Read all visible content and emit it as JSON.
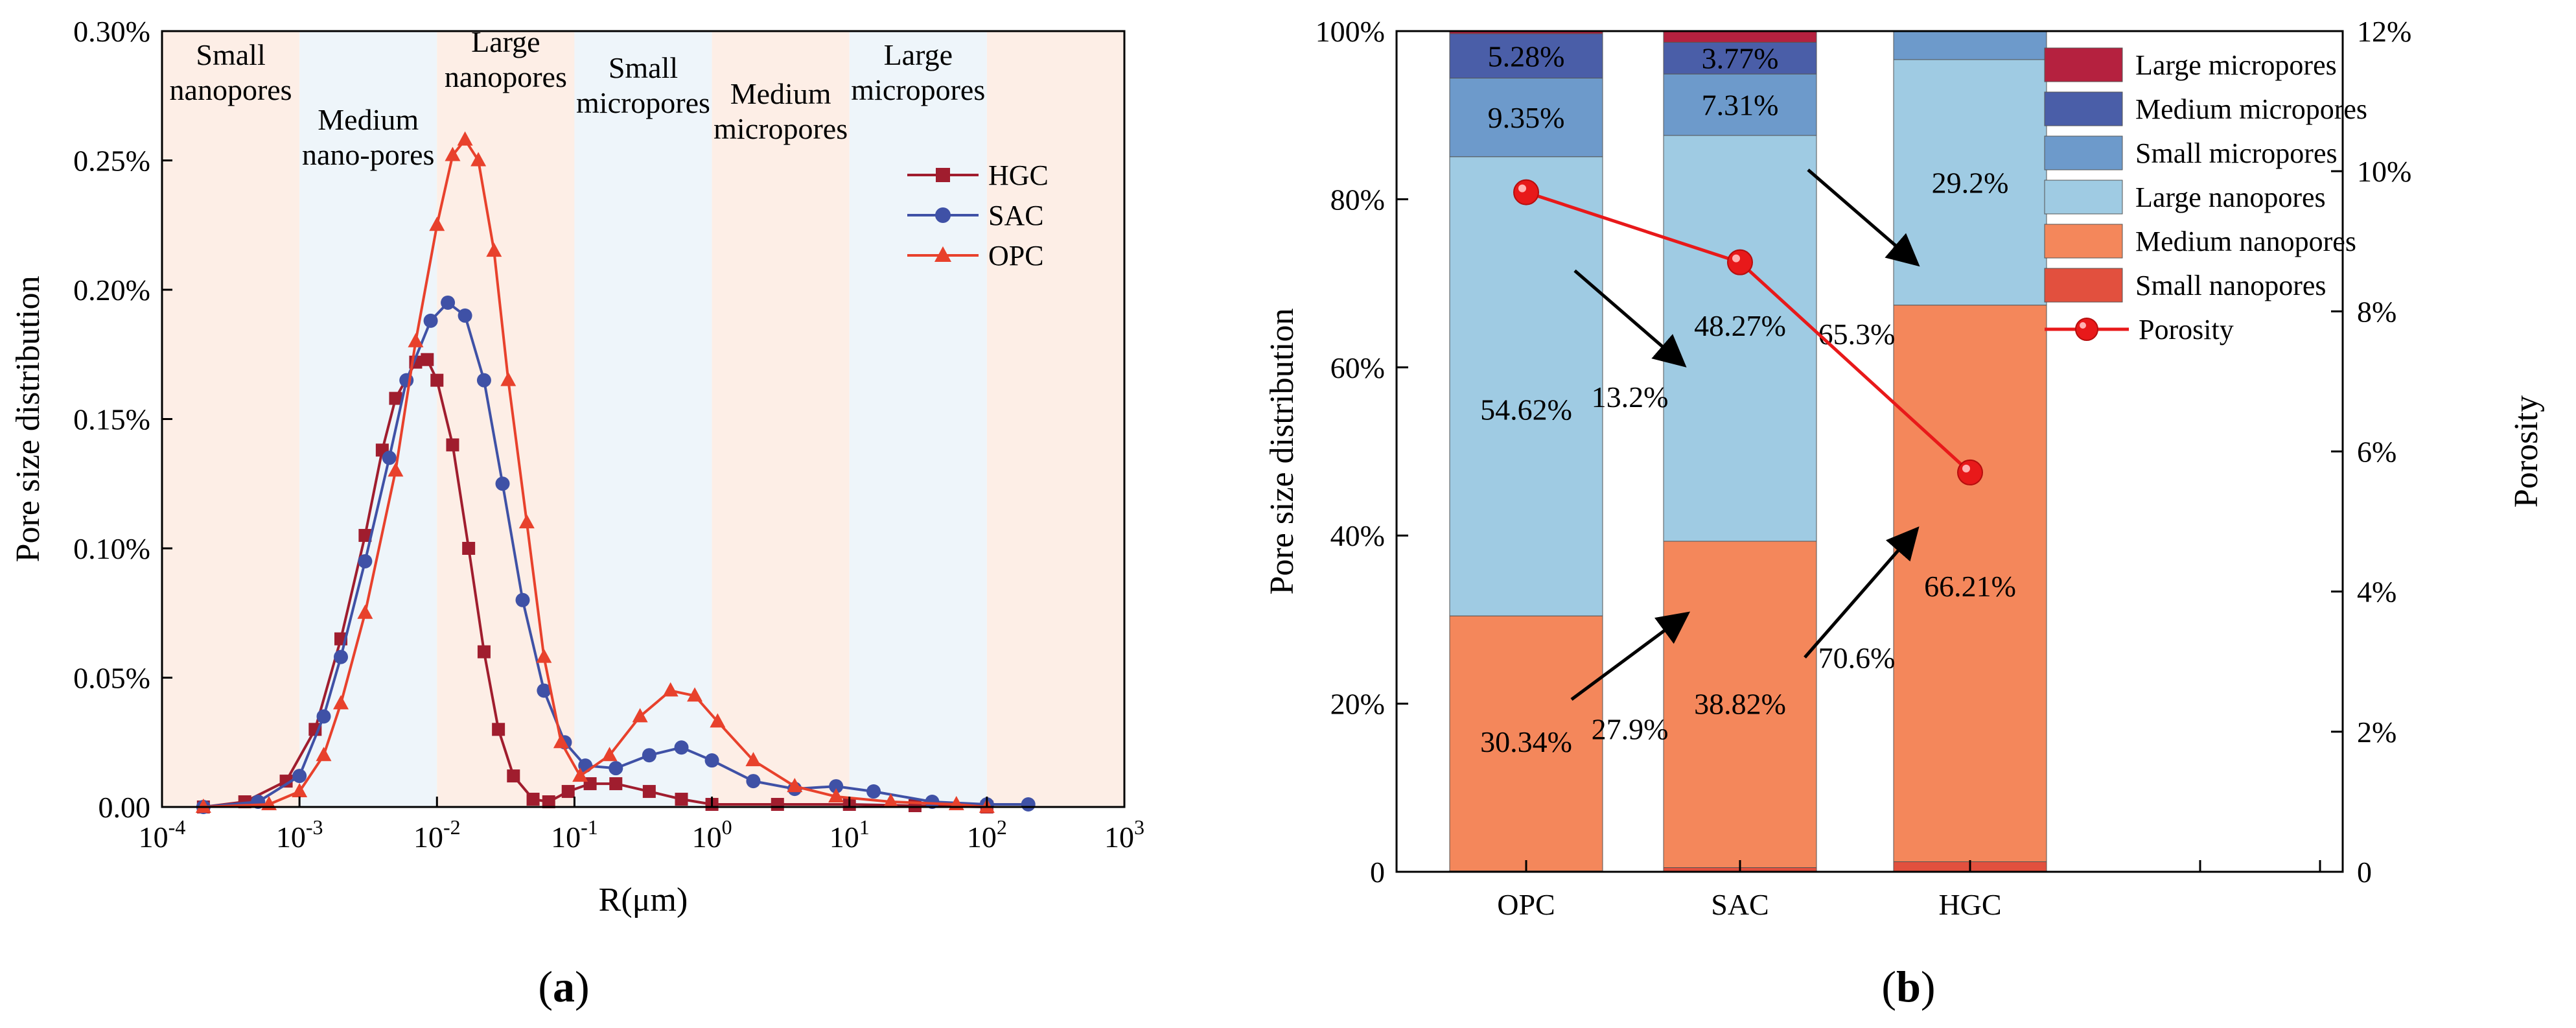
{
  "panel_a": {
    "caption_letter": "a",
    "ylabel": "Pore size distribution",
    "xlabel": "R(μm)",
    "x_tick_exponents": [
      "-4",
      "-3",
      "-2",
      "-1",
      "0",
      "1",
      "2",
      "3"
    ],
    "y_tick_labels": [
      "0.00",
      "0.05%",
      "0.10%",
      "0.15%",
      "0.20%",
      "0.25%",
      "0.30%"
    ],
    "bands": [
      {
        "lines": [
          "Small",
          "nanopores"
        ],
        "color": "#fdeee6"
      },
      {
        "lines": [
          "Medium",
          "nano-pores"
        ],
        "color": "#eef5fa"
      },
      {
        "lines": [
          "Large",
          "nanopores"
        ],
        "color": "#fdeee6"
      },
      {
        "lines": [
          "Small",
          "micropores"
        ],
        "color": "#eef5fa"
      },
      {
        "lines": [
          "Medium",
          "micropores"
        ],
        "color": "#fdeee6"
      },
      {
        "lines": [
          "Large",
          "micropores"
        ],
        "color": "#eef5fa"
      },
      {
        "lines": [],
        "color": "#fdeee6"
      }
    ],
    "legend": [
      "HGC",
      "SAC",
      "OPC"
    ]
  },
  "panel_b": {
    "caption_letter": "b",
    "ylabel": "Pore size distribution",
    "y2label": "Porosity",
    "y_tick_labels": [
      "0",
      "20%",
      "40%",
      "60%",
      "80%",
      "100%"
    ],
    "y2_tick_labels": [
      "0",
      "2%",
      "4%",
      "6%",
      "8%",
      "10%",
      "12%"
    ],
    "categories": [
      "OPC",
      "SAC",
      "HGC"
    ],
    "bar_labels": {
      "OPC": {
        "medium_nano": "30.34%",
        "large_nano": "54.62%",
        "small_micro": "9.35%",
        "medium_micro": "5.28%"
      },
      "SAC": {
        "medium_nano": "38.82%",
        "large_nano": "48.27%",
        "small_micro": "7.31%",
        "medium_micro": "3.77%"
      },
      "HGC": {
        "medium_nano": "66.21%",
        "large_nano": "29.2%"
      }
    },
    "change_labels": [
      "27.9%",
      "13.2%",
      "70.6%",
      "65.3%"
    ],
    "legend": [
      {
        "label": "Large micropores",
        "color": "#b5213f"
      },
      {
        "label": "Medium micropores",
        "color": "#4a5ea8"
      },
      {
        "label": "Small micropores",
        "color": "#6d9acb"
      },
      {
        "label": "Large nanopores",
        "color": "#9fcbe3"
      },
      {
        "label": "Medium nanopores",
        "color": "#f4875b"
      },
      {
        "label": "Small nanopores",
        "color": "#e2503e"
      },
      {
        "label": "Porosity",
        "color": "#e8191a"
      }
    ]
  },
  "chart_data": [
    {
      "type": "line",
      "title": "",
      "xlabel": "R(μm)",
      "ylabel": "Pore size distribution",
      "xscale": "log",
      "xlim": [
        0.0001,
        1000
      ],
      "ylim": [
        0,
        0.3
      ],
      "y_unit": "%",
      "region_boundaries_um": [
        0.001,
        0.01,
        0.1,
        1,
        10,
        100
      ],
      "series": [
        {
          "name": "HGC",
          "color": "#a01d2e",
          "marker": "square",
          "points": [
            [
              0.0002,
              0.0
            ],
            [
              0.0004,
              0.002
            ],
            [
              0.0008,
              0.01
            ],
            [
              0.0013,
              0.03
            ],
            [
              0.002,
              0.065
            ],
            [
              0.003,
              0.105
            ],
            [
              0.004,
              0.138
            ],
            [
              0.005,
              0.158
            ],
            [
              0.007,
              0.172
            ],
            [
              0.0085,
              0.173
            ],
            [
              0.01,
              0.165
            ],
            [
              0.013,
              0.14
            ],
            [
              0.017,
              0.1
            ],
            [
              0.022,
              0.06
            ],
            [
              0.028,
              0.03
            ],
            [
              0.036,
              0.012
            ],
            [
              0.05,
              0.003
            ],
            [
              0.065,
              0.002
            ],
            [
              0.09,
              0.006
            ],
            [
              0.13,
              0.009
            ],
            [
              0.2,
              0.009
            ],
            [
              0.35,
              0.006
            ],
            [
              0.6,
              0.003
            ],
            [
              1.0,
              0.001
            ],
            [
              3.0,
              0.001
            ],
            [
              10,
              0.001
            ],
            [
              30,
              0.0005
            ],
            [
              100,
              0.0
            ]
          ]
        },
        {
          "name": "SAC",
          "color": "#3f51a6",
          "marker": "circle",
          "points": [
            [
              0.0002,
              0.0
            ],
            [
              0.0005,
              0.002
            ],
            [
              0.001,
              0.012
            ],
            [
              0.0015,
              0.035
            ],
            [
              0.002,
              0.058
            ],
            [
              0.003,
              0.095
            ],
            [
              0.0045,
              0.135
            ],
            [
              0.006,
              0.165
            ],
            [
              0.009,
              0.188
            ],
            [
              0.012,
              0.195
            ],
            [
              0.016,
              0.19
            ],
            [
              0.022,
              0.165
            ],
            [
              0.03,
              0.125
            ],
            [
              0.042,
              0.08
            ],
            [
              0.06,
              0.045
            ],
            [
              0.085,
              0.025
            ],
            [
              0.12,
              0.016
            ],
            [
              0.2,
              0.015
            ],
            [
              0.35,
              0.02
            ],
            [
              0.6,
              0.023
            ],
            [
              1.0,
              0.018
            ],
            [
              2.0,
              0.01
            ],
            [
              4.0,
              0.007
            ],
            [
              8.0,
              0.008
            ],
            [
              15,
              0.006
            ],
            [
              40,
              0.002
            ],
            [
              100,
              0.001
            ],
            [
              200,
              0.001
            ]
          ]
        },
        {
          "name": "OPC",
          "color": "#e8412c",
          "marker": "triangle",
          "points": [
            [
              0.0002,
              0.0
            ],
            [
              0.0006,
              0.001
            ],
            [
              0.001,
              0.006
            ],
            [
              0.0015,
              0.02
            ],
            [
              0.002,
              0.04
            ],
            [
              0.003,
              0.075
            ],
            [
              0.005,
              0.13
            ],
            [
              0.007,
              0.18
            ],
            [
              0.01,
              0.225
            ],
            [
              0.013,
              0.252
            ],
            [
              0.016,
              0.258
            ],
            [
              0.02,
              0.25
            ],
            [
              0.026,
              0.215
            ],
            [
              0.033,
              0.165
            ],
            [
              0.045,
              0.11
            ],
            [
              0.06,
              0.058
            ],
            [
              0.08,
              0.025
            ],
            [
              0.11,
              0.012
            ],
            [
              0.18,
              0.02
            ],
            [
              0.3,
              0.035
            ],
            [
              0.5,
              0.045
            ],
            [
              0.75,
              0.043
            ],
            [
              1.1,
              0.033
            ],
            [
              2.0,
              0.018
            ],
            [
              4.0,
              0.008
            ],
            [
              8.0,
              0.004
            ],
            [
              20,
              0.002
            ],
            [
              60,
              0.001
            ],
            [
              100,
              0.0
            ]
          ]
        }
      ]
    },
    {
      "type": "bar",
      "stacked": true,
      "title": "",
      "xlabel": "",
      "ylabel": "Pore size distribution",
      "y2label": "Porosity",
      "ylim": [
        0,
        100
      ],
      "y2lim": [
        0,
        12
      ],
      "categories": [
        "OPC",
        "SAC",
        "HGC"
      ],
      "series": [
        {
          "name": "Small nanopores",
          "values": [
            0.1,
            0.5,
            1.2
          ]
        },
        {
          "name": "Medium nanopores",
          "values": [
            30.34,
            38.82,
            66.21
          ]
        },
        {
          "name": "Large nanopores",
          "values": [
            54.62,
            48.27,
            29.2
          ]
        },
        {
          "name": "Small micropores",
          "values": [
            9.35,
            7.31,
            3.4
          ]
        },
        {
          "name": "Medium micropores",
          "values": [
            5.28,
            3.77,
            0.0
          ]
        },
        {
          "name": "Large micropores",
          "values": [
            0.31,
            1.33,
            0.0
          ]
        }
      ],
      "line_series": {
        "name": "Porosity",
        "axis": "right",
        "values": [
          9.7,
          8.7,
          5.7
        ]
      }
    }
  ]
}
